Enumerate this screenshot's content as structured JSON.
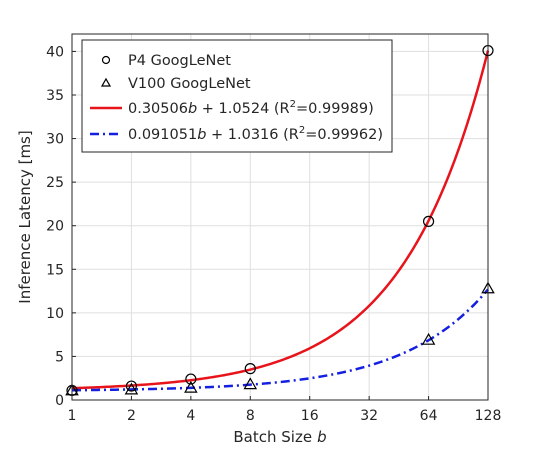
{
  "chart_data": {
    "type": "line",
    "xlabel": "Batch Size",
    "xlabel_var": "b",
    "ylabel": "Inference Latency [ms]",
    "x_scale": "log2",
    "xlim": [
      1,
      128
    ],
    "ylim": [
      0,
      42
    ],
    "x_ticks": [
      1,
      2,
      4,
      8,
      16,
      32,
      64,
      128
    ],
    "x_tick_labels": [
      "1",
      "2",
      "4",
      "8",
      "16",
      "32",
      "64",
      "128"
    ],
    "y_ticks": [
      0,
      5,
      10,
      15,
      20,
      25,
      30,
      35,
      40
    ],
    "y_tick_labels": [
      "0",
      "5",
      "10",
      "15",
      "20",
      "25",
      "30",
      "35",
      "40"
    ],
    "grid": true,
    "legend_position": "top-left",
    "series": [
      {
        "name": "P4 GoogLeNet",
        "kind": "scatter",
        "marker": "circle",
        "color": "#000000",
        "x": [
          1,
          2,
          4,
          8,
          64,
          128
        ],
        "y": [
          1.1,
          1.6,
          2.4,
          3.6,
          20.5,
          40.1
        ]
      },
      {
        "name": "V100 GoogLeNet",
        "kind": "scatter",
        "marker": "triangle",
        "color": "#000000",
        "x": [
          1,
          2,
          4,
          8,
          64,
          128
        ],
        "y": [
          1.1,
          1.2,
          1.4,
          1.8,
          6.9,
          12.8
        ]
      },
      {
        "name": "0.30506b + 1.0524 (R2=0.99989)",
        "legend_parts": [
          "0.30506",
          "b",
          " + 1.0524 (R",
          "2",
          "=0.99989)"
        ],
        "kind": "fit",
        "slope": 0.30506,
        "intercept": 1.0524,
        "r_squared": 0.99989,
        "style": "solid",
        "color": "#e8141b"
      },
      {
        "name": "0.091051b + 1.0316 (R2=0.99962)",
        "legend_parts": [
          "0.091051",
          "b",
          " + 1.0316 (R",
          "2",
          "=0.99962)"
        ],
        "kind": "fit",
        "slope": 0.091051,
        "intercept": 1.0316,
        "r_squared": 0.99962,
        "style": "dash-dot",
        "color": "#1420e0"
      }
    ]
  }
}
